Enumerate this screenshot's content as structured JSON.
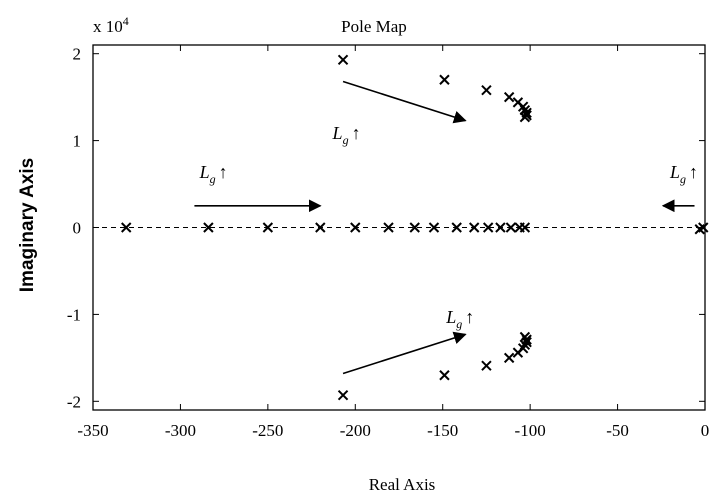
{
  "chart_data": {
    "type": "scatter",
    "title": "Pole Map",
    "xlabel": "Real Axis",
    "ylabel": "Imaginary Axis",
    "y_exponent_label": "x 10",
    "y_exponent_power": "4",
    "xlim": [
      -350,
      0
    ],
    "ylim": [
      -21000,
      21000
    ],
    "x_ticks": [
      -350,
      -300,
      -250,
      -200,
      -150,
      -100,
      -50,
      0
    ],
    "x_tick_labels": [
      "-350",
      "-300",
      "-250",
      "-200",
      "-150",
      "-100",
      "-50",
      "0"
    ],
    "y_ticks": [
      -20000,
      -10000,
      0,
      10000,
      20000
    ],
    "y_tick_labels": [
      "-2",
      "-1",
      "0",
      "1",
      "2"
    ],
    "grid": false,
    "zero_line": "dashed",
    "marker": "x",
    "colors": {
      "marks": "#000000",
      "axes": "#000000",
      "background": "#ffffff"
    },
    "series": [
      {
        "points": [
          [
            -331,
            0
          ],
          [
            -284,
            0
          ],
          [
            -250,
            0
          ],
          [
            -220,
            0
          ],
          [
            -200,
            0
          ],
          [
            -181,
            0
          ],
          [
            -166,
            0
          ],
          [
            -155,
            0
          ],
          [
            -142,
            0
          ],
          [
            -132,
            0
          ],
          [
            -124,
            0
          ],
          [
            -117,
            0
          ],
          [
            -111,
            0
          ],
          [
            -106,
            0
          ],
          [
            -103,
            0
          ],
          [
            -3,
            -200
          ],
          [
            -1,
            0
          ],
          [
            -207,
            19300
          ],
          [
            -149,
            17000
          ],
          [
            -125,
            15800
          ],
          [
            -112,
            15000
          ],
          [
            -107,
            14400
          ],
          [
            -104,
            13900
          ],
          [
            -103,
            13500
          ],
          [
            -102,
            13200
          ],
          [
            -102,
            12900
          ],
          [
            -103,
            12700
          ],
          [
            -207,
            -19300
          ],
          [
            -149,
            -17000
          ],
          [
            -125,
            -15900
          ],
          [
            -112,
            -15000
          ],
          [
            -107,
            -14400
          ],
          [
            -104,
            -13900
          ],
          [
            -103,
            -13500
          ],
          [
            -102,
            -13200
          ],
          [
            -102,
            -12900
          ],
          [
            -103,
            -12600
          ]
        ]
      }
    ],
    "annotations": [
      {
        "label": "L",
        "sub": "g",
        "suffix": "↑",
        "at": [
          -213,
          10200
        ],
        "arrow_from": [
          -207,
          16800
        ],
        "arrow_to": [
          -137,
          12300
        ]
      },
      {
        "label": "L",
        "sub": "g",
        "suffix": "↑",
        "at": [
          -289,
          5700
        ],
        "arrow_from": [
          -292,
          2500
        ],
        "arrow_to": [
          -220,
          2500
        ]
      },
      {
        "label": "L",
        "sub": "g",
        "suffix": "↑",
        "at": [
          -20,
          5700
        ],
        "arrow_from": [
          -6,
          2500
        ],
        "arrow_to": [
          -24,
          2500
        ]
      },
      {
        "label": "L",
        "sub": "g",
        "suffix": "↑",
        "at": [
          -148,
          -11000
        ],
        "arrow_from": [
          -207,
          -16800
        ],
        "arrow_to": [
          -137,
          -12300
        ]
      }
    ]
  }
}
